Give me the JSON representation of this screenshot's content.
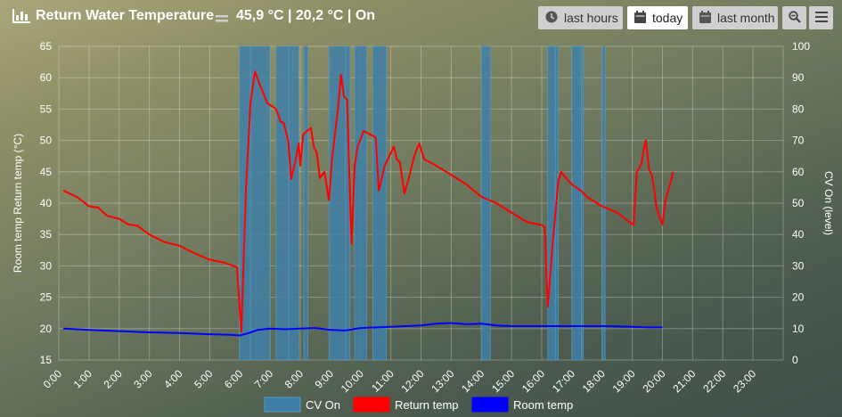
{
  "header": {
    "title": "Return Water Temperature",
    "status": "45,9 °C | 20,2 °C | On",
    "icon": "chart-icon"
  },
  "toolbar": {
    "last_hours": "last hours",
    "today": "today",
    "last_month": "last month",
    "zoom_icon": "zoom-out-icon",
    "menu_icon": "menu-icon"
  },
  "colors": {
    "cv_on": "#3f7fa7",
    "return_temp": "#ff0000",
    "room_temp": "#0000ff",
    "accent": "#ffffff"
  },
  "chart_data": {
    "type": "line",
    "x_ticks": [
      "0:00",
      "1:00",
      "2:00",
      "3:00",
      "4:00",
      "5:00",
      "6:00",
      "7:00",
      "8:00",
      "9:00",
      "10:00",
      "11:00",
      "12:00",
      "13:00",
      "14:00",
      "15:00",
      "16:00",
      "17:00",
      "18:00",
      "19:00",
      "20:00",
      "21:00",
      "22:00",
      "23:00"
    ],
    "xlim": [
      0,
      24
    ],
    "y_left": {
      "label": "Room temp Return temp (°C)",
      "min": 15,
      "max": 65,
      "ticks": [
        15,
        20,
        25,
        30,
        35,
        40,
        45,
        50,
        55,
        60,
        65
      ]
    },
    "y_right": {
      "label": "CV On (level)",
      "min": 0,
      "max": 100,
      "ticks": [
        0,
        10,
        20,
        30,
        40,
        50,
        60,
        70,
        80,
        90,
        100
      ]
    },
    "grid": true,
    "legend_position": "bottom-center",
    "series": [
      {
        "name": "CV On",
        "kind": "bar",
        "axis": "right",
        "level": 100,
        "intervals_hours": [
          [
            5.98,
            6.35
          ],
          [
            6.35,
            7.0
          ],
          [
            7.2,
            7.62
          ],
          [
            7.62,
            7.95
          ],
          [
            8.12,
            8.25
          ],
          [
            8.95,
            9.5
          ],
          [
            9.5,
            9.65
          ],
          [
            9.8,
            10.2
          ],
          [
            10.4,
            10.85
          ],
          [
            14.0,
            14.3
          ],
          [
            16.2,
            16.45
          ],
          [
            16.45,
            16.55
          ],
          [
            17.0,
            17.32
          ],
          [
            17.32,
            17.38
          ],
          [
            18.0,
            18.1
          ]
        ]
      },
      {
        "name": "Return temp",
        "kind": "line",
        "axis": "left",
        "points": [
          [
            0.15,
            42
          ],
          [
            0.6,
            41
          ],
          [
            1.0,
            39.5
          ],
          [
            1.3,
            39.3
          ],
          [
            1.6,
            38
          ],
          [
            2.0,
            37.5
          ],
          [
            2.3,
            36.6
          ],
          [
            2.6,
            36.4
          ],
          [
            3.0,
            35
          ],
          [
            3.5,
            33.8
          ],
          [
            4.0,
            33.2
          ],
          [
            4.5,
            32
          ],
          [
            5.0,
            31
          ],
          [
            5.5,
            30.5
          ],
          [
            5.9,
            29.8
          ],
          [
            6.05,
            19.5
          ],
          [
            6.2,
            42
          ],
          [
            6.35,
            56
          ],
          [
            6.5,
            61
          ],
          [
            6.65,
            59
          ],
          [
            6.9,
            56
          ],
          [
            7.2,
            55
          ],
          [
            7.35,
            53
          ],
          [
            7.45,
            52.8
          ],
          [
            7.6,
            50
          ],
          [
            7.7,
            43.8
          ],
          [
            7.85,
            47
          ],
          [
            7.95,
            49.5
          ],
          [
            8.0,
            46
          ],
          [
            8.1,
            51
          ],
          [
            8.35,
            52
          ],
          [
            8.45,
            49
          ],
          [
            8.55,
            48
          ],
          [
            8.65,
            44
          ],
          [
            8.8,
            45
          ],
          [
            8.95,
            40.5
          ],
          [
            9.05,
            47
          ],
          [
            9.25,
            55
          ],
          [
            9.35,
            60.5
          ],
          [
            9.45,
            57
          ],
          [
            9.55,
            56.5
          ],
          [
            9.7,
            33.5
          ],
          [
            9.8,
            46
          ],
          [
            9.9,
            49
          ],
          [
            10.1,
            51.5
          ],
          [
            10.3,
            51
          ],
          [
            10.5,
            50.5
          ],
          [
            10.6,
            42
          ],
          [
            10.8,
            46
          ],
          [
            10.95,
            47.5
          ],
          [
            11.1,
            49
          ],
          [
            11.2,
            47
          ],
          [
            11.3,
            46.5
          ],
          [
            11.45,
            41.5
          ],
          [
            11.6,
            44
          ],
          [
            11.75,
            47
          ],
          [
            11.85,
            48.5
          ],
          [
            11.95,
            49.5
          ],
          [
            12.1,
            47
          ],
          [
            12.5,
            46
          ],
          [
            13.0,
            44.5
          ],
          [
            13.5,
            43
          ],
          [
            14.0,
            41
          ],
          [
            14.5,
            40
          ],
          [
            15.0,
            38.5
          ],
          [
            15.5,
            37
          ],
          [
            16.0,
            36.5
          ],
          [
            16.1,
            36.2
          ],
          [
            16.2,
            23.5
          ],
          [
            16.35,
            33
          ],
          [
            16.55,
            43.5
          ],
          [
            16.65,
            45
          ],
          [
            16.8,
            44
          ],
          [
            17.0,
            43
          ],
          [
            17.3,
            42
          ],
          [
            17.5,
            41
          ],
          [
            18.0,
            39.5
          ],
          [
            18.5,
            38.5
          ],
          [
            18.9,
            37
          ],
          [
            19.05,
            36.5
          ],
          [
            19.15,
            45
          ],
          [
            19.3,
            46.2
          ],
          [
            19.4,
            49
          ],
          [
            19.45,
            50
          ],
          [
            19.55,
            45.5
          ],
          [
            19.65,
            44.5
          ],
          [
            19.7,
            43
          ],
          [
            19.8,
            39.5
          ],
          [
            19.9,
            37.8
          ],
          [
            20.0,
            36.6
          ],
          [
            20.1,
            40.5
          ],
          [
            20.25,
            43
          ],
          [
            20.35,
            45
          ]
        ],
        "note_series_points_hours": "x in hours"
      },
      {
        "name": "Room temp",
        "kind": "line",
        "axis": "left",
        "points": [
          [
            0.15,
            20
          ],
          [
            1.0,
            19.8
          ],
          [
            2.0,
            19.6
          ],
          [
            3.0,
            19.4
          ],
          [
            4.0,
            19.3
          ],
          [
            5.0,
            19.1
          ],
          [
            5.7,
            19
          ],
          [
            6.0,
            18.9
          ],
          [
            6.3,
            19.3
          ],
          [
            6.6,
            19.8
          ],
          [
            7.0,
            20
          ],
          [
            7.5,
            19.9
          ],
          [
            8.0,
            20
          ],
          [
            8.5,
            20.1
          ],
          [
            9.0,
            19.8
          ],
          [
            9.5,
            19.7
          ],
          [
            10.0,
            20.1
          ],
          [
            11.0,
            20.3
          ],
          [
            12.0,
            20.5
          ],
          [
            12.5,
            20.8
          ],
          [
            13.0,
            20.9
          ],
          [
            13.5,
            20.7
          ],
          [
            14.0,
            20.8
          ],
          [
            14.5,
            20.5
          ],
          [
            15.0,
            20.4
          ],
          [
            16.0,
            20.4
          ],
          [
            17.0,
            20.4
          ],
          [
            18.0,
            20.4
          ],
          [
            19.0,
            20.3
          ],
          [
            19.5,
            20.2
          ],
          [
            20.0,
            20.2
          ]
        ]
      }
    ]
  }
}
